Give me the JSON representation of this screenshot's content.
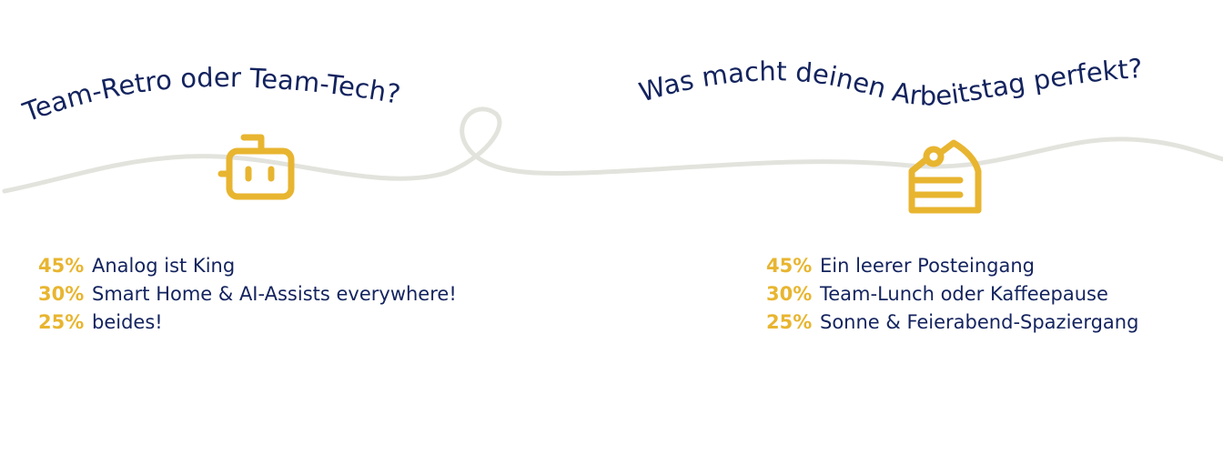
{
  "colors": {
    "navy": "#13235e",
    "yellow": "#e8b530",
    "line": "#e3e3dd"
  },
  "left": {
    "title": "Team-Retro oder Team-Tech?",
    "icon": "robot-icon",
    "items": [
      {
        "pct": "45%",
        "label": "Analog ist King"
      },
      {
        "pct": "30%",
        "label": "Smart Home & AI-Assists everywhere!"
      },
      {
        "pct": "25%",
        "label": "beides!"
      }
    ]
  },
  "right": {
    "title": "Was macht deinen Arbeitstag perfekt?",
    "icon": "cake-slice-icon",
    "items": [
      {
        "pct": "45%",
        "label": "Ein leerer Posteingang"
      },
      {
        "pct": "30%",
        "label": "Team-Lunch oder Kaffeepause"
      },
      {
        "pct": "25%",
        "label": "Sonne & Feierabend-Spaziergang"
      }
    ]
  }
}
